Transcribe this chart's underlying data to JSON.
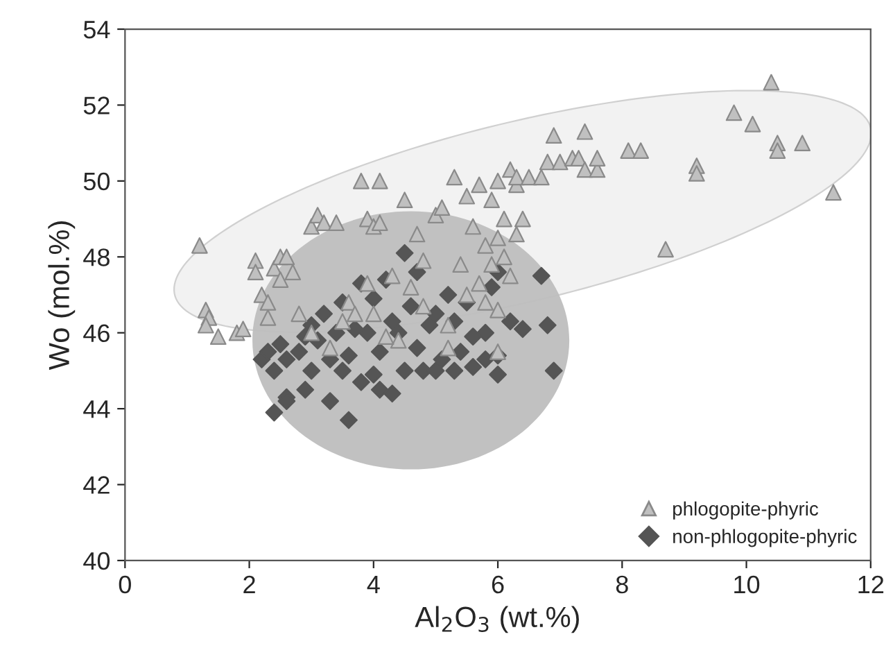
{
  "chart_data": {
    "type": "scatter",
    "xlabel": "Al$_{2}$O$_{3}$ (wt.%)",
    "ylabel": "Wo (mol.%)",
    "xlim": [
      0,
      12
    ],
    "xticks": [
      0,
      2,
      4,
      6,
      8,
      10,
      12
    ],
    "ylim": [
      40,
      54
    ],
    "yticks": [
      40,
      42,
      44,
      46,
      48,
      50,
      52,
      54
    ],
    "grid": false,
    "legend": "bottom right",
    "series": [
      {
        "name": "phlogopite-phyric",
        "color": "#c0c0c0",
        "marker": "triangle",
        "x": [
          1.2,
          1.3,
          1.35,
          1.3,
          1.5,
          1.8,
          1.9,
          2.1,
          2.1,
          2.2,
          2.3,
          2.4,
          2.5,
          2.5,
          2.6,
          2.7,
          2.8,
          2.3,
          3.0,
          3.1,
          3.2,
          3.4,
          3.6,
          3.7,
          3.8,
          3.9,
          4.1,
          4.0,
          4.1,
          4.3,
          4.5,
          4.7,
          4.8,
          5.0,
          5.1,
          5.3,
          5.5,
          5.6,
          5.7,
          5.9,
          6.0,
          6.1,
          6.1,
          6.2,
          6.3,
          6.3,
          6.5,
          6.4,
          6.7,
          6.8,
          6.9,
          7.0,
          7.2,
          7.3,
          7.4,
          7.4,
          7.6,
          7.6,
          8.1,
          8.3,
          8.7,
          9.2,
          9.2,
          9.8,
          10.1,
          10.4,
          10.5,
          10.5,
          10.9,
          11.4,
          3.0,
          3.5,
          4.0,
          4.4,
          4.8,
          5.2,
          5.5,
          5.7,
          5.9,
          6.0,
          5.2,
          4.2,
          3.3,
          5.8,
          6.2,
          5.4,
          4.6,
          3.9,
          6.0,
          5.8,
          6.3,
          6.0
        ],
        "values": [
          48.3,
          46.6,
          46.4,
          46.2,
          45.9,
          46.0,
          46.1,
          47.9,
          47.6,
          47.0,
          46.8,
          47.7,
          48.0,
          47.4,
          48.0,
          47.6,
          46.5,
          46.4,
          48.8,
          49.1,
          48.9,
          48.9,
          46.8,
          46.5,
          50.0,
          49.0,
          50.0,
          48.8,
          48.9,
          47.5,
          49.5,
          48.6,
          47.9,
          49.1,
          49.3,
          50.1,
          49.6,
          48.8,
          49.9,
          49.5,
          50.0,
          49.0,
          48.0,
          50.3,
          49.9,
          50.1,
          50.1,
          49.0,
          50.1,
          50.5,
          51.2,
          50.5,
          50.6,
          50.6,
          51.3,
          50.3,
          50.3,
          50.6,
          50.8,
          50.8,
          48.2,
          50.4,
          50.2,
          51.8,
          51.5,
          52.6,
          51.0,
          50.8,
          51.0,
          49.7,
          46.0,
          46.3,
          46.5,
          45.8,
          46.7,
          46.2,
          47.0,
          47.3,
          47.8,
          46.6,
          45.6,
          45.9,
          45.6,
          46.8,
          47.5,
          47.8,
          47.2,
          47.3,
          48.5,
          48.3,
          48.6,
          45.5
        ]
      },
      {
        "name": "non-phlogopite-phyric",
        "color": "#555555",
        "marker": "diamond",
        "x": [
          2.4,
          2.6,
          2.6,
          2.9,
          3.3,
          3.5,
          3.6,
          3.8,
          4.0,
          4.1,
          4.3,
          4.5,
          4.8,
          5.0,
          5.3,
          5.6,
          6.0,
          6.9,
          6.0,
          5.8,
          2.2,
          2.3,
          2.5,
          2.8,
          2.6,
          3.0,
          3.2,
          3.4,
          3.5,
          3.7,
          3.8,
          4.0,
          4.2,
          4.3,
          4.4,
          4.6,
          4.7,
          4.9,
          5.0,
          5.2,
          5.3,
          5.5,
          5.6,
          5.8,
          5.9,
          6.0,
          6.2,
          6.4,
          6.7,
          6.8,
          4.5,
          3.9,
          3.1,
          2.9,
          3.6,
          4.1,
          4.7,
          5.1,
          5.4,
          3.3,
          3.0,
          2.4
        ],
        "values": [
          43.9,
          44.3,
          44.2,
          44.5,
          44.2,
          45.0,
          43.7,
          44.7,
          44.9,
          44.5,
          44.4,
          45.0,
          45.0,
          45.0,
          45.0,
          45.1,
          44.9,
          45.0,
          45.4,
          45.3,
          45.3,
          45.5,
          45.7,
          45.5,
          45.3,
          46.2,
          46.5,
          46.0,
          46.8,
          46.1,
          47.3,
          46.9,
          47.4,
          46.3,
          46.0,
          46.7,
          47.6,
          46.2,
          46.5,
          47.0,
          46.3,
          46.8,
          45.9,
          46.0,
          47.2,
          47.6,
          46.3,
          46.1,
          47.5,
          46.2,
          48.1,
          46.0,
          45.8,
          45.9,
          45.4,
          45.5,
          45.6,
          45.3,
          45.5,
          45.3,
          45.0,
          45.0
        ]
      }
    ]
  }
}
